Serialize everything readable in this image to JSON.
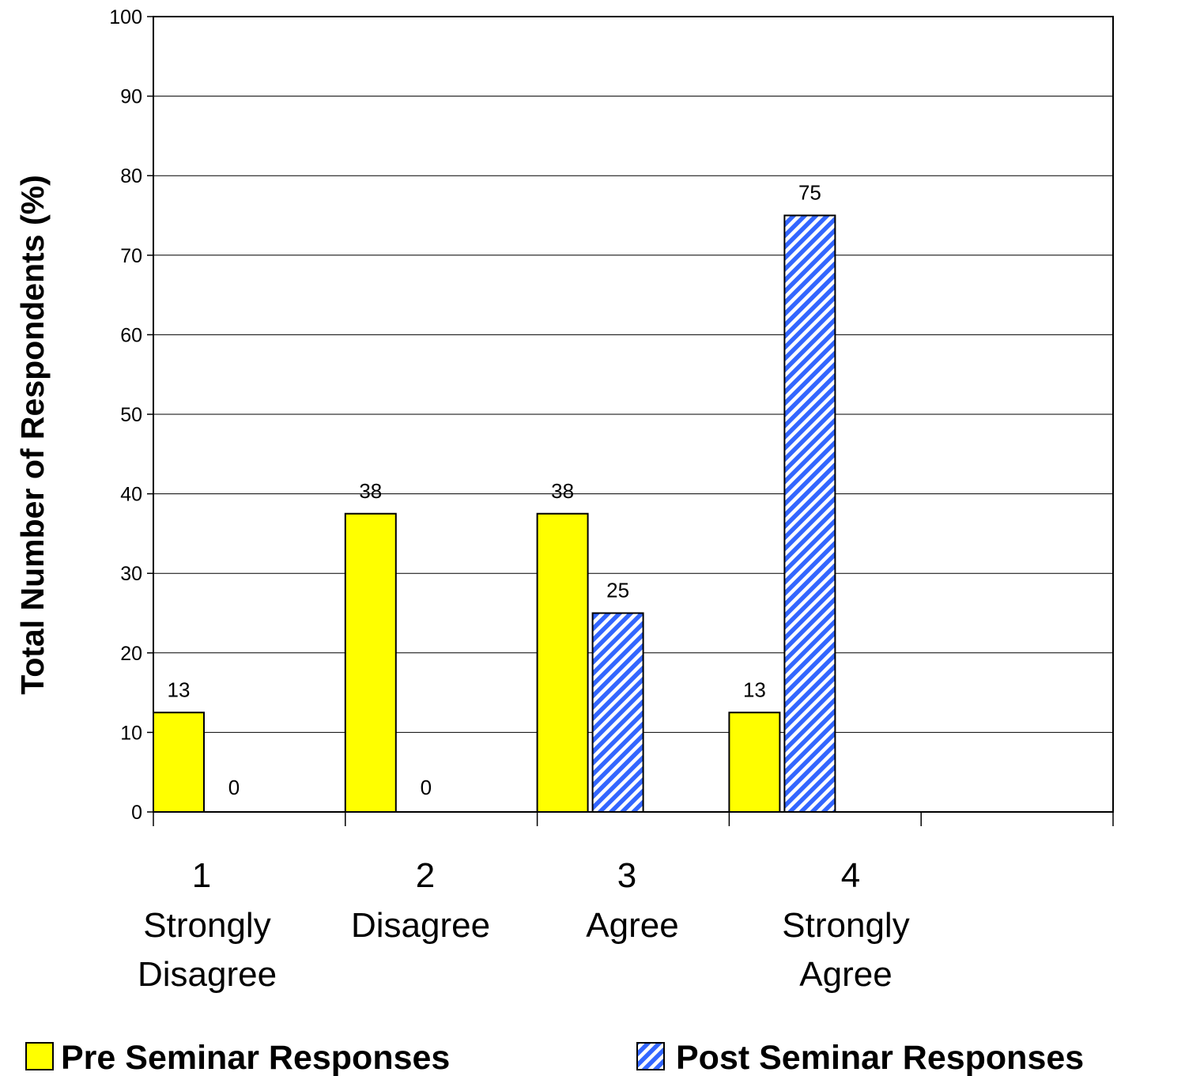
{
  "chart_data": {
    "type": "bar",
    "title": "",
    "ylabel": "Total Number of Respondents (%)",
    "xlabel": "",
    "ylim": [
      0,
      100
    ],
    "yticks": [
      0,
      10,
      20,
      30,
      40,
      50,
      60,
      70,
      80,
      90,
      100
    ],
    "grid": true,
    "legend_position": "bottom",
    "categories": [
      {
        "number": "1",
        "label_lines": [
          "Strongly",
          "Disagree"
        ]
      },
      {
        "number": "2",
        "label_lines": [
          "Disagree"
        ]
      },
      {
        "number": "3",
        "label_lines": [
          "Agree"
        ]
      },
      {
        "number": "4",
        "label_lines": [
          "Strongly",
          "Agree"
        ]
      },
      {
        "number": "",
        "label_lines": []
      }
    ],
    "series": [
      {
        "name": "Pre Seminar  Responses",
        "color": "#ffff00",
        "pattern": "solid",
        "values": [
          12.5,
          37.5,
          37.5,
          12.5,
          null
        ],
        "data_labels": [
          "13",
          "38",
          "38",
          "13",
          ""
        ]
      },
      {
        "name": "Post Seminar Responses",
        "color": "#3366ff",
        "pattern": "diagonal-stripes",
        "values": [
          0,
          0,
          25,
          75,
          null
        ],
        "data_labels": [
          "0",
          "0",
          "25",
          "75",
          ""
        ]
      }
    ]
  }
}
